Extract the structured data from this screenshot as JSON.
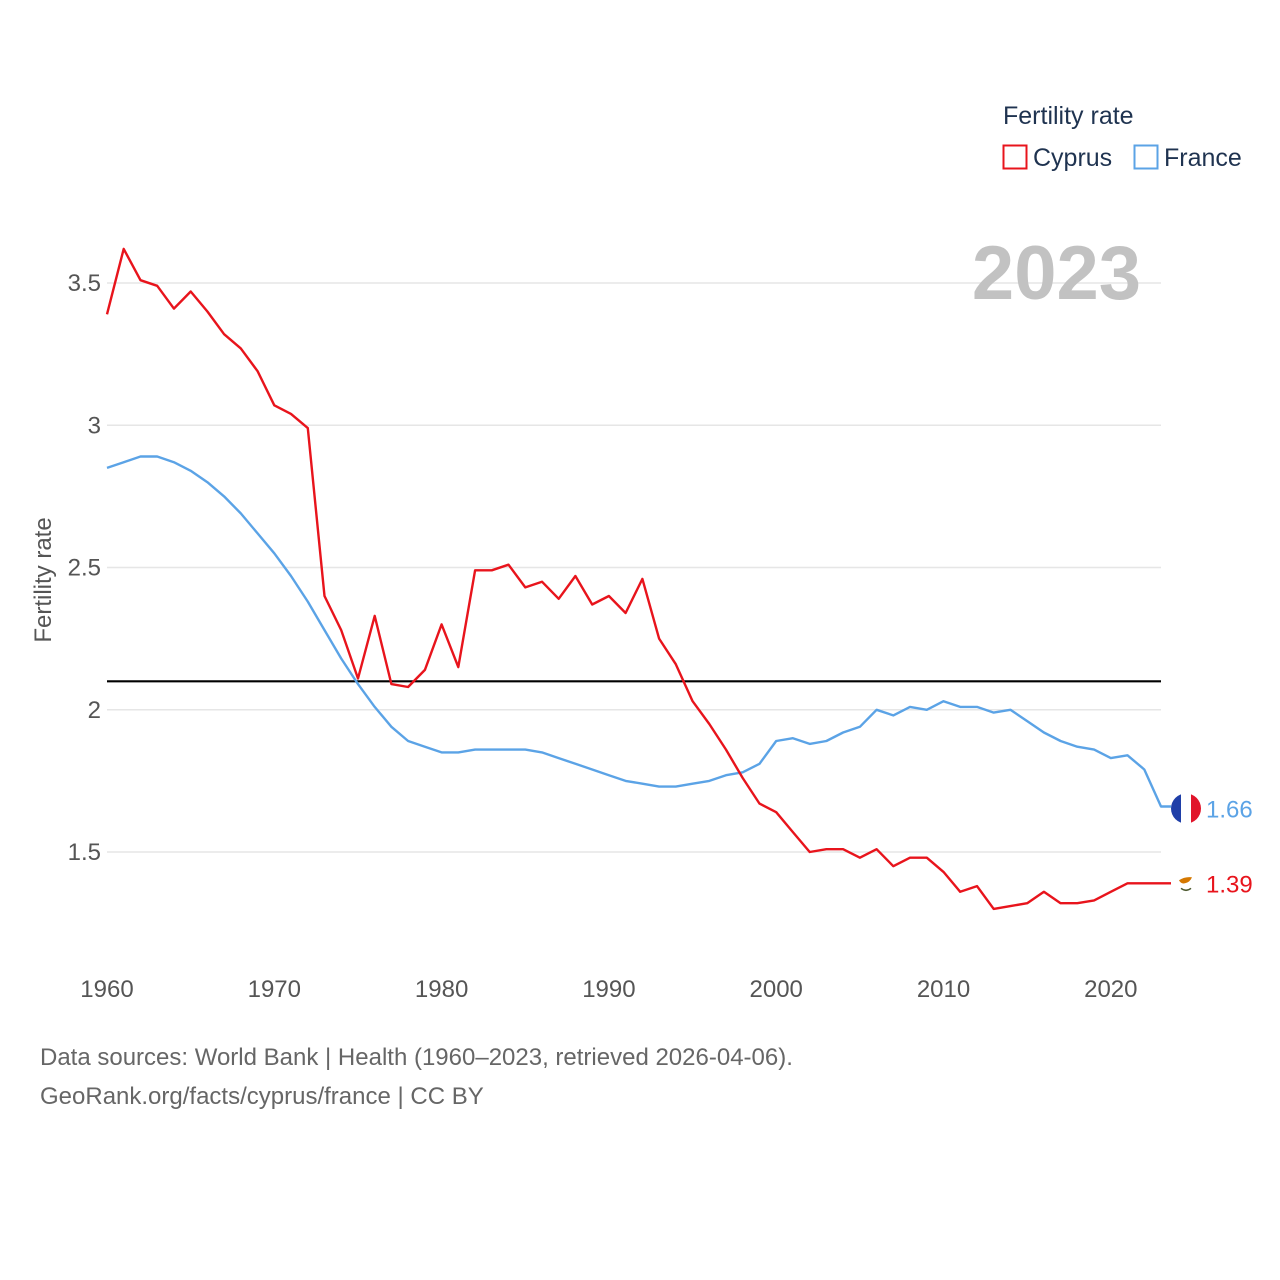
{
  "chart_data": {
    "type": "line",
    "ylabel": "Fertility rate",
    "xlim": [
      1960,
      2023
    ],
    "ylim": [
      1.15,
      3.75
    ],
    "yticks": [
      {
        "value": 1.5,
        "label": "1.5"
      },
      {
        "value": 2,
        "label": "2"
      },
      {
        "value": 2.5,
        "label": "2.5"
      },
      {
        "value": 3,
        "label": "3"
      },
      {
        "value": 3.5,
        "label": "3.5"
      }
    ],
    "xticks": [
      {
        "value": 1960,
        "label": "1960"
      },
      {
        "value": 1970,
        "label": "1970"
      },
      {
        "value": 1980,
        "label": "1980"
      },
      {
        "value": 1990,
        "label": "1990"
      },
      {
        "value": 2000,
        "label": "2000"
      },
      {
        "value": 2010,
        "label": "2010"
      },
      {
        "value": 2020,
        "label": "2020"
      }
    ],
    "reference_line": {
      "value": 2.1,
      "color": "#000000"
    },
    "year_label": "2023",
    "legend": {
      "title": "Fertility rate",
      "position": "top-right"
    },
    "x": [
      1960,
      1961,
      1962,
      1963,
      1964,
      1965,
      1966,
      1967,
      1968,
      1969,
      1970,
      1971,
      1972,
      1973,
      1974,
      1975,
      1976,
      1977,
      1978,
      1979,
      1980,
      1981,
      1982,
      1983,
      1984,
      1985,
      1986,
      1987,
      1988,
      1989,
      1990,
      1991,
      1992,
      1993,
      1994,
      1995,
      1996,
      1997,
      1998,
      1999,
      2000,
      2001,
      2002,
      2003,
      2004,
      2005,
      2006,
      2007,
      2008,
      2009,
      2010,
      2011,
      2012,
      2013,
      2014,
      2015,
      2016,
      2017,
      2018,
      2019,
      2020,
      2021,
      2022,
      2023
    ],
    "series": [
      {
        "name": "Cyprus",
        "color": "#e8141c",
        "end_label": "1.39",
        "values": [
          3.39,
          3.62,
          3.51,
          3.49,
          3.41,
          3.47,
          3.4,
          3.32,
          3.27,
          3.19,
          3.07,
          3.04,
          2.99,
          2.4,
          2.28,
          2.11,
          2.33,
          2.09,
          2.08,
          2.14,
          2.3,
          2.15,
          2.49,
          2.49,
          2.51,
          2.43,
          2.45,
          2.39,
          2.47,
          2.37,
          2.4,
          2.34,
          2.46,
          2.25,
          2.16,
          2.03,
          1.95,
          1.86,
          1.76,
          1.67,
          1.64,
          1.57,
          1.5,
          1.51,
          1.51,
          1.48,
          1.51,
          1.45,
          1.48,
          1.48,
          1.43,
          1.36,
          1.38,
          1.3,
          1.31,
          1.32,
          1.36,
          1.32,
          1.32,
          1.33,
          1.36,
          1.39,
          1.39,
          1.39
        ]
      },
      {
        "name": "France",
        "color": "#5ba3e6",
        "end_label": "1.66",
        "values": [
          2.85,
          2.87,
          2.89,
          2.89,
          2.87,
          2.84,
          2.8,
          2.75,
          2.69,
          2.62,
          2.55,
          2.47,
          2.38,
          2.28,
          2.18,
          2.09,
          2.01,
          1.94,
          1.89,
          1.87,
          1.85,
          1.85,
          1.86,
          1.86,
          1.86,
          1.86,
          1.85,
          1.83,
          1.81,
          1.79,
          1.77,
          1.75,
          1.74,
          1.73,
          1.73,
          1.74,
          1.75,
          1.77,
          1.78,
          1.81,
          1.89,
          1.9,
          1.88,
          1.89,
          1.92,
          1.94,
          2.0,
          1.98,
          2.01,
          2.0,
          2.03,
          2.01,
          2.01,
          1.99,
          2.0,
          1.96,
          1.92,
          1.89,
          1.87,
          1.86,
          1.83,
          1.84,
          1.79,
          1.66
        ]
      }
    ]
  },
  "footer": {
    "sources": "Data sources: World Bank | Health (1960–2023, retrieved 2026-04-06).",
    "credit": "GeoRank.org/facts/cyprus/france | CC BY"
  }
}
